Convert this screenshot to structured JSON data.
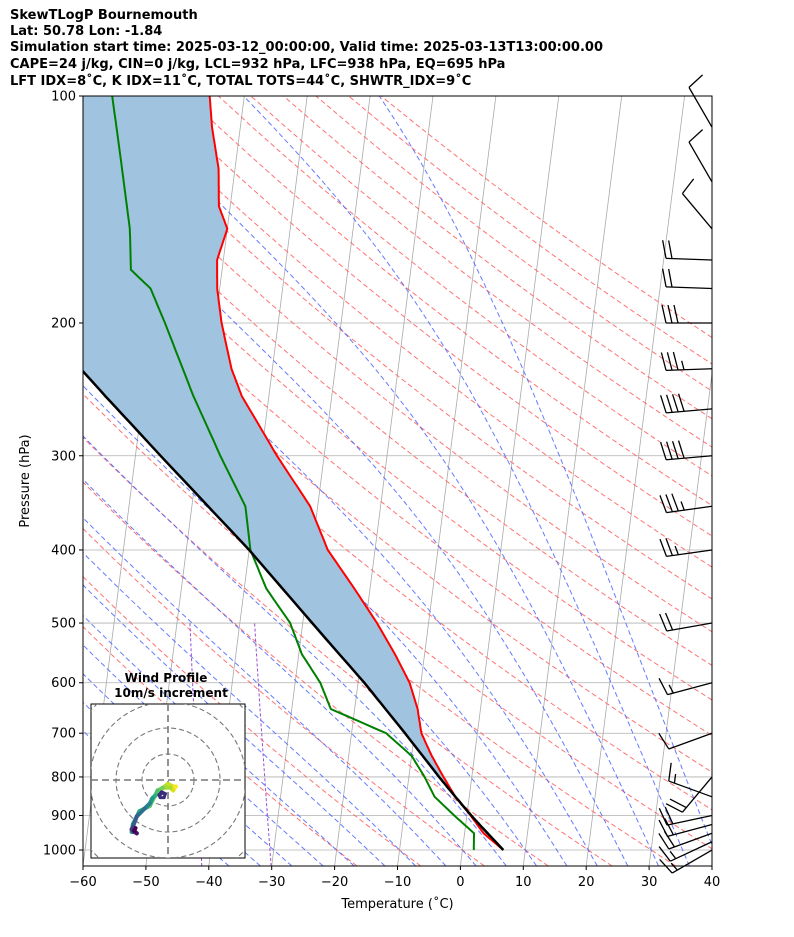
{
  "header": {
    "title": "SkewTLogP Bournemouth",
    "location": "Lat: 50.78   Lon: -1.84",
    "times": "Simulation start time: 2025-03-12_00:00:00, Valid time: 2025-03-13T13:00:00.00",
    "indices1": "CAPE=24 j/kg, CIN=0 j/kg, LCL=932 hPa, LFC=938 hPa, EQ=695 hPa",
    "indices2": "LFT IDX=8$^\\circ$C, K IDX=11$^\\circ$C, TOTAL TOTS=44$^\\circ$C, SHWTR_IDX=9$^\\circ$C"
  },
  "header_display": {
    "indices2": "LFT IDX=8˚C, K IDX=11˚C, TOTAL TOTS=44˚C, SHWTR_IDX=9˚C"
  },
  "chart_data": {
    "type": "line",
    "xlabel": "Temperature (˚C)",
    "ylabel": "Pressure (hPa)",
    "xlim": [
      -60,
      40
    ],
    "ylim": [
      1050,
      100
    ],
    "y_scale": "log",
    "x_ticks": [
      -60,
      -50,
      -40,
      -30,
      -20,
      -10,
      0,
      10,
      20,
      30,
      40
    ],
    "x_tick_labels": [
      "−60",
      "−50",
      "−40",
      "−30",
      "−20",
      "−10",
      "0",
      "10",
      "20",
      "30",
      "40"
    ],
    "y_ticks": [
      100,
      200,
      300,
      400,
      500,
      600,
      700,
      800,
      900,
      1000
    ],
    "y_tick_labels": [
      "100",
      "200",
      "300",
      "400",
      "500",
      "600",
      "700",
      "800",
      "900",
      "1000"
    ],
    "grid": true,
    "series": [
      {
        "role": "temperature",
        "color": "#ff0000",
        "points": [
          [
            1000,
            6.5
          ],
          [
            950,
            3.0
          ],
          [
            900,
            0.6
          ],
          [
            850,
            -2.2
          ],
          [
            800,
            -4.5
          ],
          [
            750,
            -6.8
          ],
          [
            700,
            -8.9
          ],
          [
            650,
            -10.0
          ],
          [
            600,
            -11.8
          ],
          [
            550,
            -14.7
          ],
          [
            500,
            -18.2
          ],
          [
            450,
            -22.5
          ],
          [
            400,
            -27.5
          ],
          [
            350,
            -31.2
          ],
          [
            300,
            -37.5
          ],
          [
            250,
            -44.3
          ],
          [
            230,
            -46.5
          ],
          [
            200,
            -49.0
          ],
          [
            180,
            -50.4
          ],
          [
            165,
            -51.0
          ],
          [
            150,
            -50.0
          ],
          [
            140,
            -51.8
          ],
          [
            125,
            -52.6
          ],
          [
            110,
            -54.5
          ],
          [
            100,
            -55.5
          ]
        ]
      },
      {
        "role": "dewpoint",
        "color": "#008000",
        "points": [
          [
            1000,
            1.8
          ],
          [
            950,
            1.5
          ],
          [
            900,
            -2.0
          ],
          [
            850,
            -5.5
          ],
          [
            800,
            -7.5
          ],
          [
            750,
            -10.0
          ],
          [
            700,
            -14.5
          ],
          [
            650,
            -23.8
          ],
          [
            600,
            -26.0
          ],
          [
            550,
            -29.5
          ],
          [
            500,
            -32.0
          ],
          [
            450,
            -36.5
          ],
          [
            400,
            -39.8
          ],
          [
            350,
            -41.5
          ],
          [
            300,
            -46.5
          ],
          [
            250,
            -52.0
          ],
          [
            200,
            -58.0
          ],
          [
            180,
            -61.0
          ],
          [
            170,
            -64.5
          ],
          [
            150,
            -65.5
          ],
          [
            120,
            -68.5
          ],
          [
            100,
            -71.0
          ]
        ]
      },
      {
        "role": "parcel",
        "color": "#000000",
        "points": [
          [
            1000,
            6.5
          ],
          [
            932,
            2.6
          ],
          [
            900,
            0.7
          ],
          [
            850,
            -2.2
          ],
          [
            800,
            -5.2
          ],
          [
            700,
            -11.5
          ],
          [
            600,
            -19.0
          ],
          [
            500,
            -28.5
          ],
          [
            400,
            -40.0
          ],
          [
            300,
            -56.0
          ],
          [
            250,
            -66.0
          ],
          [
            200,
            -78.0
          ],
          [
            150,
            -94.0
          ],
          [
            100,
            -117.0
          ]
        ]
      }
    ],
    "cape_shading": {
      "color": "#a0c4df",
      "between": [
        "parcel",
        "temperature"
      ],
      "from_hpa": 1000,
      "to_hpa": 100
    },
    "background_lines": {
      "isotherm_color": "#aaaaaa",
      "dry_adiabat_color": "#ff5a5a",
      "moist_adiabat_color": "#4a64ff",
      "mixing_ratio_color": "#9a4fd0"
    },
    "wind_barbs": {
      "color": "#000000",
      "levels": [
        {
          "p": 1000,
          "speed_kt": 15,
          "dir_deg": 240
        },
        {
          "p": 975,
          "speed_kt": 15,
          "dir_deg": 245
        },
        {
          "p": 950,
          "speed_kt": 20,
          "dir_deg": 250
        },
        {
          "p": 925,
          "speed_kt": 20,
          "dir_deg": 255
        },
        {
          "p": 900,
          "speed_kt": 20,
          "dir_deg": 258
        },
        {
          "p": 850,
          "speed_kt": 15,
          "dir_deg": 290
        },
        {
          "p": 800,
          "speed_kt": 20,
          "dir_deg": 220
        },
        {
          "p": 700,
          "speed_kt": 10,
          "dir_deg": 250
        },
        {
          "p": 600,
          "speed_kt": 15,
          "dir_deg": 255
        },
        {
          "p": 500,
          "speed_kt": 20,
          "dir_deg": 260
        },
        {
          "p": 400,
          "speed_kt": 25,
          "dir_deg": 262
        },
        {
          "p": 350,
          "speed_kt": 35,
          "dir_deg": 262
        },
        {
          "p": 300,
          "speed_kt": 40,
          "dir_deg": 265
        },
        {
          "p": 260,
          "speed_kt": 40,
          "dir_deg": 265
        },
        {
          "p": 230,
          "speed_kt": 35,
          "dir_deg": 268
        },
        {
          "p": 200,
          "speed_kt": 30,
          "dir_deg": 270
        },
        {
          "p": 180,
          "speed_kt": 20,
          "dir_deg": 272
        },
        {
          "p": 165,
          "speed_kt": 20,
          "dir_deg": 272
        },
        {
          "p": 150,
          "speed_kt": 10,
          "dir_deg": 320
        },
        {
          "p": 130,
          "speed_kt": 10,
          "dir_deg": 330
        },
        {
          "p": 110,
          "speed_kt": 10,
          "dir_deg": 330
        }
      ]
    },
    "hodograph": {
      "title": "Wind Profile",
      "subtitle": "10m/s increment",
      "ring_step_ms": 10,
      "points": [
        [
          -14,
          -20
        ],
        [
          -13.5,
          -17
        ],
        [
          -12,
          -14
        ],
        [
          -11,
          -12
        ],
        [
          -9,
          -11
        ],
        [
          -7,
          -10
        ],
        [
          -5.5,
          -7
        ],
        [
          -4,
          -5
        ],
        [
          -2,
          -3
        ],
        [
          0,
          -1.5
        ],
        [
          2,
          -2.5
        ],
        [
          3,
          -2.5
        ],
        [
          2,
          -4
        ],
        [
          1,
          -3
        ],
        [
          -2,
          -3
        ],
        [
          -4,
          -4
        ],
        [
          -5,
          -6
        ],
        [
          -6,
          -7
        ],
        [
          -7,
          -9
        ],
        [
          -9,
          -11
        ],
        [
          -12,
          -14
        ],
        [
          -13.5,
          -18
        ],
        [
          -14,
          -19
        ],
        [
          -13,
          -20
        ],
        [
          -12,
          -20.5
        ],
        [
          -13,
          -19.5
        ],
        [
          -12.5,
          -18.5
        ]
      ],
      "inner_loop": [
        [
          -3,
          0
        ],
        [
          -2,
          1
        ],
        [
          -1,
          0.5
        ],
        [
          -1.5,
          -1
        ],
        [
          -3,
          -1
        ],
        [
          -3.5,
          0
        ],
        [
          -2.5,
          1.2
        ],
        [
          -1.3,
          0.3
        ]
      ]
    }
  }
}
